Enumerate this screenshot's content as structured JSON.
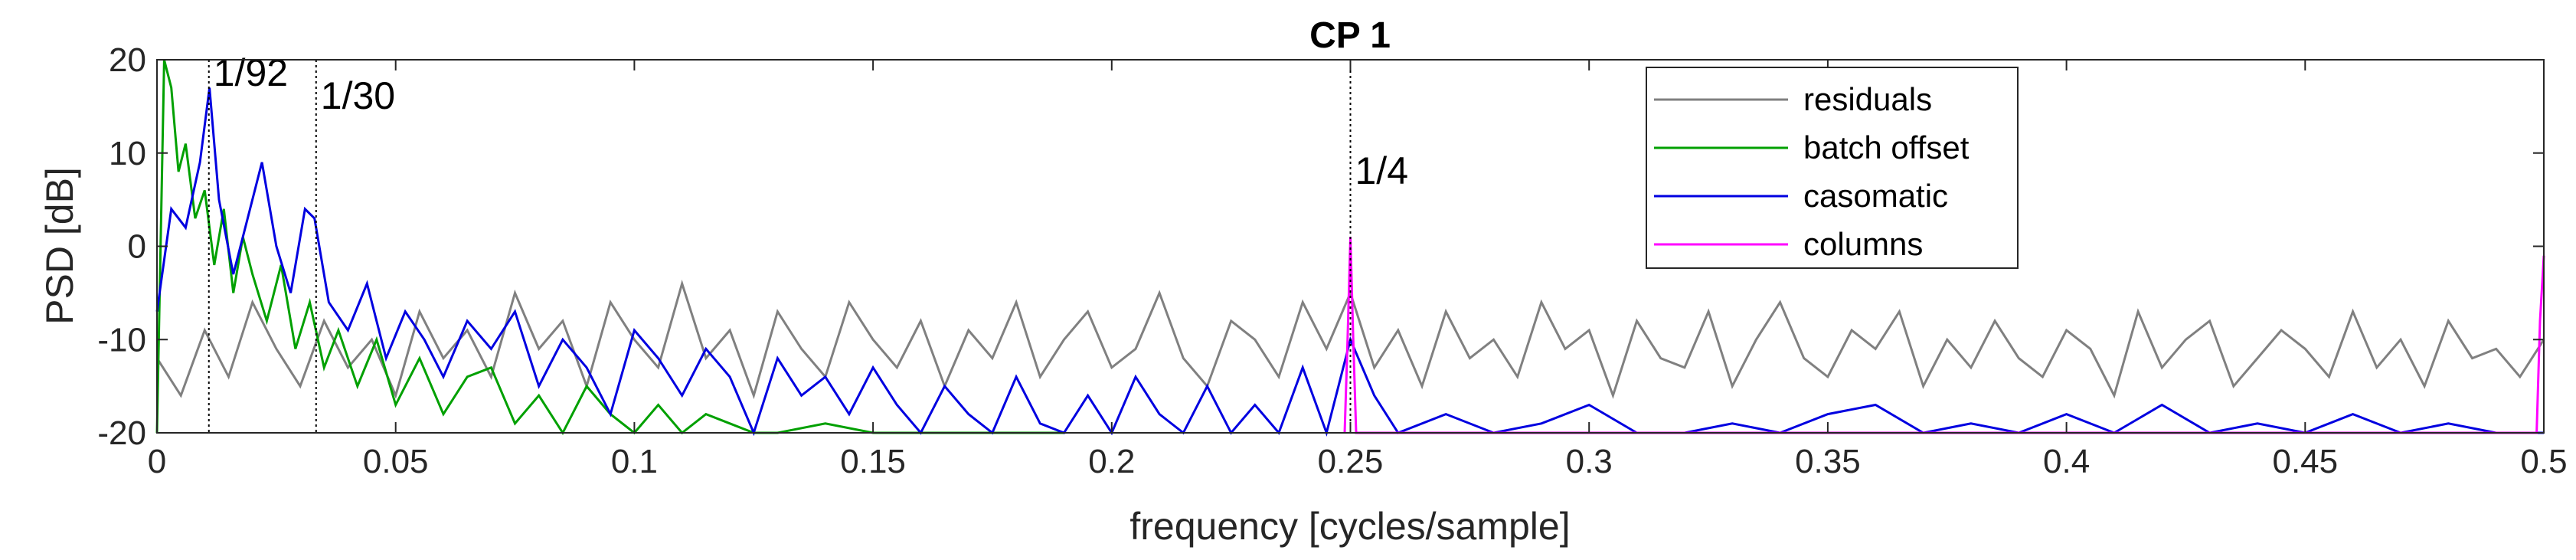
{
  "chart_data": {
    "type": "line",
    "title": "CP 1",
    "xlabel": "frequency [cycles/sample]",
    "ylabel": "PSD [dB]",
    "xlim": [
      0,
      0.5
    ],
    "ylim": [
      -20,
      20
    ],
    "xticks": [
      0,
      0.05,
      0.1,
      0.15,
      0.2,
      0.25,
      0.3,
      0.35,
      0.4,
      0.45,
      0.5
    ],
    "xtick_labels": [
      "0",
      "0.05",
      "0.1",
      "0.15",
      "0.2",
      "0.25",
      "0.3",
      "0.35",
      "0.4",
      "0.45",
      "0.5"
    ],
    "yticks": [
      -20,
      -10,
      0,
      10,
      20
    ],
    "ytick_labels": [
      "-20",
      "-10",
      "0",
      "10",
      "20"
    ],
    "grid": false,
    "legend_position": "top-right",
    "annotations": [
      {
        "label": "1/92",
        "x": 0.01087
      },
      {
        "label": "1/30",
        "x": 0.03333
      },
      {
        "label": "1/4",
        "x": 0.25
      }
    ],
    "series": [
      {
        "name": "residuals",
        "color": "#808080",
        "x": [
          0,
          0.005,
          0.01,
          0.015,
          0.02,
          0.025,
          0.03,
          0.035,
          0.04,
          0.045,
          0.05,
          0.055,
          0.06,
          0.065,
          0.07,
          0.075,
          0.08,
          0.085,
          0.09,
          0.095,
          0.1,
          0.105,
          0.11,
          0.115,
          0.12,
          0.125,
          0.13,
          0.135,
          0.14,
          0.145,
          0.15,
          0.155,
          0.16,
          0.165,
          0.17,
          0.175,
          0.18,
          0.185,
          0.19,
          0.195,
          0.2,
          0.205,
          0.21,
          0.215,
          0.22,
          0.225,
          0.23,
          0.235,
          0.24,
          0.245,
          0.25,
          0.255,
          0.26,
          0.265,
          0.27,
          0.275,
          0.28,
          0.285,
          0.29,
          0.295,
          0.3,
          0.305,
          0.31,
          0.315,
          0.32,
          0.325,
          0.33,
          0.335,
          0.34,
          0.345,
          0.35,
          0.355,
          0.36,
          0.365,
          0.37,
          0.375,
          0.38,
          0.385,
          0.39,
          0.395,
          0.4,
          0.405,
          0.41,
          0.415,
          0.42,
          0.425,
          0.43,
          0.435,
          0.44,
          0.445,
          0.45,
          0.455,
          0.46,
          0.465,
          0.47,
          0.475,
          0.48,
          0.485,
          0.49,
          0.495,
          0.5
        ],
        "y": [
          -12,
          -16,
          -9,
          -14,
          -6,
          -11,
          -15,
          -8,
          -13,
          -10,
          -16,
          -7,
          -12,
          -9,
          -14,
          -5,
          -11,
          -8,
          -15,
          -6,
          -10,
          -13,
          -4,
          -12,
          -9,
          -16,
          -7,
          -11,
          -14,
          -6,
          -10,
          -13,
          -8,
          -15,
          -9,
          -12,
          -6,
          -14,
          -10,
          -7,
          -13,
          -11,
          -5,
          -12,
          -15,
          -8,
          -10,
          -14,
          -6,
          -11,
          -5,
          -13,
          -9,
          -15,
          -7,
          -12,
          -10,
          -14,
          -6,
          -11,
          -9,
          -16,
          -8,
          -12,
          -13,
          -7,
          -15,
          -10,
          -6,
          -12,
          -14,
          -9,
          -11,
          -7,
          -15,
          -10,
          -13,
          -8,
          -12,
          -14,
          -9,
          -11,
          -16,
          -7,
          -13,
          -10,
          -8,
          -15,
          -12,
          -9,
          -11,
          -14,
          -7,
          -13,
          -10,
          -15,
          -8,
          -12,
          -11,
          -14,
          -10
        ]
      },
      {
        "name": "batch offset",
        "color": "#00a000",
        "x": [
          0,
          0.0015,
          0.003,
          0.0045,
          0.006,
          0.008,
          0.01,
          0.012,
          0.014,
          0.016,
          0.018,
          0.02,
          0.023,
          0.026,
          0.029,
          0.032,
          0.035,
          0.038,
          0.042,
          0.046,
          0.05,
          0.055,
          0.06,
          0.065,
          0.07,
          0.075,
          0.08,
          0.085,
          0.09,
          0.095,
          0.1,
          0.105,
          0.11,
          0.115,
          0.12,
          0.125,
          0.13,
          0.14,
          0.15,
          0.16,
          0.17,
          0.18,
          0.19
        ],
        "y": [
          -20,
          20,
          17,
          8,
          11,
          3,
          6,
          -2,
          4,
          -5,
          1,
          -3,
          -8,
          -2,
          -11,
          -6,
          -13,
          -9,
          -15,
          -10,
          -17,
          -12,
          -18,
          -14,
          -13,
          -19,
          -16,
          -20,
          -15,
          -18,
          -20,
          -17,
          -20,
          -18,
          -19,
          -20,
          -20,
          -19,
          -20,
          -20,
          -20,
          -20,
          -20
        ]
      },
      {
        "name": "casomatic",
        "color": "#0000e0",
        "x": [
          0,
          0.003,
          0.006,
          0.009,
          0.011,
          0.013,
          0.016,
          0.019,
          0.022,
          0.025,
          0.028,
          0.031,
          0.033,
          0.036,
          0.04,
          0.044,
          0.048,
          0.052,
          0.056,
          0.06,
          0.065,
          0.07,
          0.075,
          0.08,
          0.085,
          0.09,
          0.095,
          0.1,
          0.105,
          0.11,
          0.115,
          0.12,
          0.125,
          0.13,
          0.135,
          0.14,
          0.145,
          0.15,
          0.155,
          0.16,
          0.165,
          0.17,
          0.175,
          0.18,
          0.185,
          0.19,
          0.195,
          0.2,
          0.205,
          0.21,
          0.215,
          0.22,
          0.225,
          0.23,
          0.235,
          0.24,
          0.245,
          0.25,
          0.255,
          0.26,
          0.27,
          0.28,
          0.29,
          0.3,
          0.31,
          0.32,
          0.33,
          0.34,
          0.35,
          0.36,
          0.37,
          0.38,
          0.39,
          0.4,
          0.41,
          0.42,
          0.43,
          0.44,
          0.45,
          0.46,
          0.47,
          0.48,
          0.49,
          0.5
        ],
        "y": [
          -7,
          4,
          2,
          9,
          17,
          5,
          -3,
          3,
          9,
          0,
          -5,
          4,
          3,
          -6,
          -9,
          -4,
          -12,
          -7,
          -10,
          -14,
          -8,
          -11,
          -7,
          -15,
          -10,
          -13,
          -18,
          -9,
          -12,
          -16,
          -11,
          -14,
          -20,
          -12,
          -16,
          -14,
          -18,
          -13,
          -17,
          -20,
          -15,
          -18,
          -20,
          -14,
          -19,
          -20,
          -16,
          -20,
          -14,
          -18,
          -20,
          -15,
          -20,
          -17,
          -20,
          -13,
          -20,
          -10,
          -16,
          -20,
          -18,
          -20,
          -19,
          -17,
          -20,
          -20,
          -19,
          -20,
          -18,
          -17,
          -20,
          -19,
          -20,
          -18,
          -20,
          -17,
          -20,
          -19,
          -20,
          -18,
          -20,
          -19,
          -20,
          -20
        ]
      },
      {
        "name": "columns",
        "color": "#ff00ff",
        "x": [
          0.2488,
          0.2494,
          0.25,
          0.2506,
          0.2512,
          0.4985,
          0.4992,
          0.5
        ],
        "y": [
          -20,
          -10,
          1,
          -10,
          -20,
          -20,
          -8,
          -1
        ]
      }
    ]
  }
}
